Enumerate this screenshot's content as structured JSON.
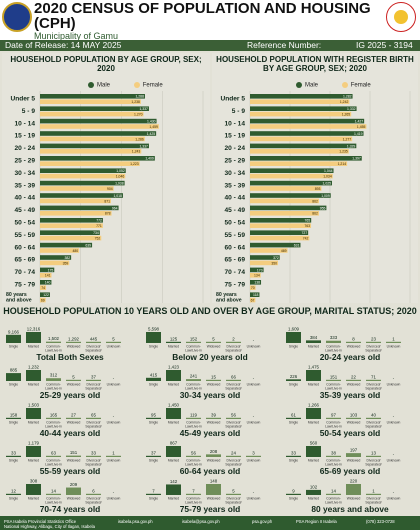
{
  "header": {
    "title": "2020 CENSUS OF POPULATION AND HOUSING (CPH)",
    "municipality": "Municipality of Gamu",
    "release": "Date of Release: 14 MAY 2025",
    "reference_label": "Reference Number:",
    "reference_number": "IG 2025 - 3194"
  },
  "colors": {
    "male": "#2f5b2f",
    "female": "#f4cd7f",
    "header_bar": "#3b5f36",
    "background": "#e2e1d6"
  },
  "legend": {
    "male": "Male",
    "female": "Female"
  },
  "chart_data": [
    {
      "type": "bar",
      "orientation": "horizontal",
      "title": "HOUSEHOLD POPULATION BY AGE GROUP, SEX; 2020",
      "categories": [
        "Under 5",
        "5 - 9",
        "10 - 14",
        "15 - 19",
        "20 - 24",
        "25 - 29",
        "30 - 34",
        "35 - 39",
        "40 - 44",
        "45 - 49",
        "50 - 54",
        "55 - 59",
        "60 - 64",
        "65 - 69",
        "70 - 74",
        "75 - 79",
        "80 years and above"
      ],
      "series": [
        {
          "name": "Male",
          "values": [
            1288,
            1337,
            1430,
            1425,
            1337,
            1409,
            1052,
            1038,
            1018,
            964,
            772,
            734,
            639,
            382,
            175,
            140,
            122
          ],
          "labels": [
            "1,288",
            "1,337",
            "1,430",
            "1,425",
            "1,337",
            "1,409",
            "1,052",
            "1,038",
            "1,018",
            "964",
            "772",
            "734",
            "639",
            "382",
            "175",
            "140",
            "122"
          ]
        },
        {
          "name": "Female",
          "values": [
            1238,
            1270,
            1459,
            1286,
            1243,
            1223,
            1046,
            904,
            871,
            878,
            771,
            752,
            480,
            359,
            141,
            74,
            69
          ],
          "labels": [
            "1,238",
            "1,270",
            "1,459",
            "1,286",
            "1,243",
            "1,223",
            "1,046",
            "904",
            "871",
            "878",
            "771",
            "752",
            "480",
            "359",
            "141",
            "74",
            "69"
          ]
        }
      ],
      "xlim": [
        0,
        2000
      ],
      "xticks": [
        "0",
        "500",
        "1,000",
        "1,500",
        "2,000"
      ]
    },
    {
      "type": "bar",
      "orientation": "horizontal",
      "title": "HOUSEHOLD POPULATION WITH REGISTER BIRTH BY AGE GROUP, SEX; 2020",
      "categories": [
        "Under 5",
        "5 - 9",
        "10 - 14",
        "15 - 19",
        "20 - 24",
        "25 - 29",
        "30 - 34",
        "35 - 39",
        "40 - 44",
        "45 - 49",
        "50 - 54",
        "55 - 59",
        "60 - 64",
        "65 - 69",
        "70 - 74",
        "75 - 79",
        "80 years and above"
      ],
      "series": [
        {
          "name": "Male",
          "values": [
            1282,
            1332,
            1427,
            1419,
            1329,
            1397,
            1044,
            1025,
            1009,
            955,
            765,
            727,
            631,
            372,
            170,
            138,
            118
          ],
          "labels": [
            "1,282",
            "1,332",
            "1,427",
            "1,419",
            "1,329",
            "1,397",
            "1,044",
            "1,025",
            "1,009",
            "955",
            "765",
            "727",
            "631",
            "372",
            "170",
            "138",
            "118"
          ]
        },
        {
          "name": "Female",
          "values": [
            1242,
            1265,
            1455,
            1277,
            1235,
            1214,
            1034,
            893,
            862,
            862,
            763,
            742,
            469,
            350,
            134,
            70,
            67
          ],
          "labels": [
            "1,242",
            "1,265",
            "1,455",
            "1,277",
            "1,235",
            "1,214",
            "1,034",
            "893",
            "862",
            "862",
            "763",
            "742",
            "469",
            "350",
            "134",
            "70",
            "67"
          ]
        }
      ],
      "xlim": [
        0,
        2000
      ],
      "xticks": [
        "0",
        "500",
        "1,000",
        "1,500",
        "2,000"
      ]
    },
    {
      "type": "bar",
      "title": "HOUSEHOLD POPULATION 10 YEARS OLD AND OVER BY AGE GROUP, MARITAL STATUS; 2020",
      "categories": [
        "Single",
        "Married",
        "Common-Law/Live-in",
        "Widowed",
        "Divorced/Separated",
        "Unknown"
      ],
      "series": [
        {
          "name": "Total Both Sexes",
          "values": [
            9166,
            12316,
            1502,
            1292,
            445,
            5
          ],
          "labels": [
            "9,166",
            "12,316",
            "1,502",
            "1,292",
            "445",
            "5"
          ]
        },
        {
          "name": "Below 20 years old",
          "values": [
            5598,
            125,
            152,
            5,
            2,
            0
          ],
          "labels": [
            "5,598",
            "125",
            "152",
            "5",
            "2",
            "-"
          ]
        },
        {
          "name": "20-24 years old",
          "values": [
            1609,
            384,
            333,
            8,
            23,
            1
          ],
          "labels": [
            "1,609",
            "384",
            "333",
            "8",
            "23",
            "1"
          ]
        },
        {
          "name": "25-29 years old",
          "values": [
            885,
            1232,
            312,
            5,
            37,
            0
          ],
          "labels": [
            "885",
            "1,232",
            "312",
            "5",
            "37",
            "-"
          ]
        },
        {
          "name": "30-34 years old",
          "values": [
            415,
            1423,
            241,
            15,
            66,
            0
          ],
          "labels": [
            "415",
            "1,423",
            "241",
            "15",
            "66",
            "-"
          ]
        },
        {
          "name": "35-39 years old",
          "values": [
            226,
            1475,
            151,
            22,
            71,
            0
          ],
          "labels": [
            "226",
            "1,475",
            "151",
            "22",
            "71",
            "-"
          ]
        },
        {
          "name": "40-44 years old",
          "values": [
            158,
            1503,
            165,
            27,
            65,
            0
          ],
          "labels": [
            "158",
            "1,503",
            "165",
            "27",
            "65",
            "-"
          ]
        },
        {
          "name": "45-49 years old",
          "values": [
            95,
            1450,
            119,
            39,
            56,
            0
          ],
          "labels": [
            "95",
            "1,450",
            "119",
            "39",
            "56",
            "-"
          ]
        },
        {
          "name": "50-54 years old",
          "values": [
            61,
            1266,
            97,
            103,
            40,
            0
          ],
          "labels": [
            "61",
            "1,266",
            "97",
            "103",
            "40",
            "-"
          ]
        },
        {
          "name": "55-59 years old",
          "values": [
            33,
            1179,
            63,
            151,
            33,
            1
          ],
          "labels": [
            "33",
            "1,179",
            "63",
            "151",
            "33",
            "1"
          ]
        },
        {
          "name": "60-64 years old",
          "values": [
            37,
            867,
            56,
            208,
            24,
            3
          ],
          "labels": [
            "37",
            "867",
            "56",
            "208",
            "24",
            "3"
          ]
        },
        {
          "name": "65-69 years old",
          "values": [
            33,
            560,
            38,
            197,
            13,
            0
          ],
          "labels": [
            "33",
            "560",
            "38",
            "197",
            "13",
            "-"
          ]
        },
        {
          "name": "70-74 years old",
          "values": [
            12,
            308,
            14,
            209,
            6,
            0
          ],
          "labels": [
            "12",
            "308",
            "14",
            "209",
            "6",
            "-"
          ]
        },
        {
          "name": "75-79 years old",
          "values": [
            7,
            142,
            7,
            148,
            5,
            0
          ],
          "labels": [
            "7",
            "142",
            "7",
            "148",
            "5",
            "-"
          ]
        },
        {
          "name": "80 years and above",
          "values": [
            9,
            102,
            14,
            220,
            1,
            0
          ],
          "labels": [
            "9",
            "102",
            "14",
            "220",
            "1",
            "-"
          ]
        }
      ]
    }
  ],
  "footer": {
    "office": "PSA Isabela Provincial Statistics Office",
    "address": "National Highway, Alibagu, City of Ilagan, Isabela",
    "web": "isabela.psa.gov.ph",
    "email": "isabela@psa.gov.ph",
    "site": "psa.gov.ph",
    "facebook": "PSA Region II Isabela",
    "phone": "(078) 323-0728"
  }
}
